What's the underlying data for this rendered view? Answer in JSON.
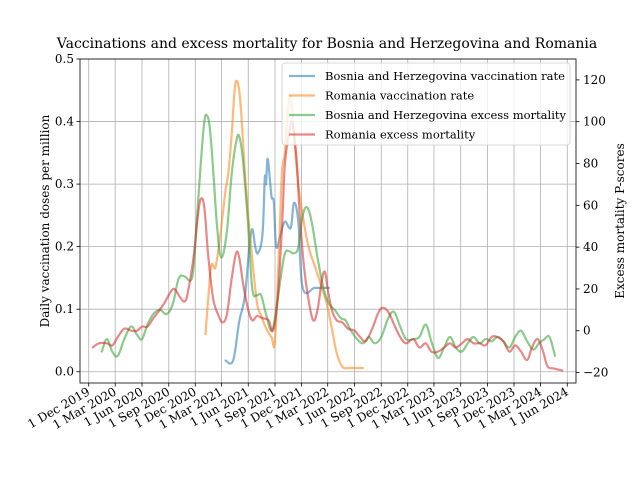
{
  "chart_data": {
    "type": "line",
    "title": "Vaccinations and excess mortality for Bosnia and Herzegovina and Romania",
    "ylabel_left": "Daily vaccination doses per million",
    "ylabel_right": "Excess mortality P-scores",
    "ylim_left": [
      -0.018,
      0.5
    ],
    "ylim_right": [
      -25,
      130
    ],
    "x_range": [
      "2019-11-01",
      "2024-07-01"
    ],
    "left_ticks": [
      {
        "value": 0.0,
        "label": "0.0"
      },
      {
        "value": 0.1,
        "label": "0.1"
      },
      {
        "value": 0.2,
        "label": "0.2"
      },
      {
        "value": 0.3,
        "label": "0.3"
      },
      {
        "value": 0.4,
        "label": "0.4"
      },
      {
        "value": 0.5,
        "label": "0.5"
      }
    ],
    "right_ticks": [
      {
        "value": -20,
        "label": "−20"
      },
      {
        "value": 0,
        "label": "0"
      },
      {
        "value": 20,
        "label": "20"
      },
      {
        "value": 40,
        "label": "40"
      },
      {
        "value": 60,
        "label": "60"
      },
      {
        "value": 80,
        "label": "80"
      },
      {
        "value": 100,
        "label": "100"
      },
      {
        "value": 120,
        "label": "120"
      }
    ],
    "x_ticks": [
      {
        "date": "2019-12-01",
        "label": "1 Dec 2019"
      },
      {
        "date": "2020-03-01",
        "label": "1 Mar 2020"
      },
      {
        "date": "2020-06-01",
        "label": "1 Jun 2020"
      },
      {
        "date": "2020-09-01",
        "label": "1 Sep 2020"
      },
      {
        "date": "2020-12-01",
        "label": "1 Dec 2020"
      },
      {
        "date": "2021-03-01",
        "label": "1 Mar 2021"
      },
      {
        "date": "2021-06-01",
        "label": "1 Jun 2021"
      },
      {
        "date": "2021-09-01",
        "label": "1 Sep 2021"
      },
      {
        "date": "2021-12-01",
        "label": "1 Dec 2021"
      },
      {
        "date": "2022-03-01",
        "label": "1 Mar 2022"
      },
      {
        "date": "2022-06-01",
        "label": "1 Jun 2022"
      },
      {
        "date": "2022-09-01",
        "label": "1 Sep 2022"
      },
      {
        "date": "2022-12-01",
        "label": "1 Dec 2022"
      },
      {
        "date": "2023-03-01",
        "label": "1 Mar 2023"
      },
      {
        "date": "2023-06-01",
        "label": "1 Jun 2023"
      },
      {
        "date": "2023-09-01",
        "label": "1 Sep 2023"
      },
      {
        "date": "2023-12-01",
        "label": "1 Dec 2023"
      },
      {
        "date": "2024-03-01",
        "label": "1 Mar 2024"
      },
      {
        "date": "2024-06-01",
        "label": "1 Jun 2024"
      }
    ],
    "grid": true,
    "legend_position": "top-right",
    "series": [
      {
        "name": "Bosnia and Herzegovina vaccination rate",
        "axis": "left",
        "color": "#1f77b4",
        "points": [
          [
            "2021-03-15",
            0.018
          ],
          [
            "2021-04-10",
            0.018
          ],
          [
            "2021-05-01",
            0.08
          ],
          [
            "2021-05-20",
            0.12
          ],
          [
            "2021-06-05",
            0.2
          ],
          [
            "2021-06-15",
            0.228
          ],
          [
            "2021-06-25",
            0.2
          ],
          [
            "2021-07-05",
            0.19
          ],
          [
            "2021-07-20",
            0.22
          ],
          [
            "2021-07-28",
            0.31
          ],
          [
            "2021-08-01",
            0.3
          ],
          [
            "2021-08-06",
            0.34
          ],
          [
            "2021-08-12",
            0.32
          ],
          [
            "2021-08-20",
            0.28
          ],
          [
            "2021-08-28",
            0.27
          ],
          [
            "2021-09-05",
            0.2
          ],
          [
            "2021-09-20",
            0.22
          ],
          [
            "2021-10-05",
            0.24
          ],
          [
            "2021-10-25",
            0.23
          ],
          [
            "2021-11-05",
            0.27
          ],
          [
            "2021-11-20",
            0.24
          ],
          [
            "2021-12-05",
            0.134
          ],
          [
            "2022-01-15",
            0.134
          ],
          [
            "2022-02-15",
            0.134
          ],
          [
            "2022-03-05",
            0.134
          ]
        ]
      },
      {
        "name": "Romania vaccination rate",
        "axis": "left",
        "color": "#ff7f0e",
        "points": [
          [
            "2021-01-05",
            0.06
          ],
          [
            "2021-01-15",
            0.12
          ],
          [
            "2021-01-25",
            0.17
          ],
          [
            "2021-02-05",
            0.165
          ],
          [
            "2021-02-10",
            0.17
          ],
          [
            "2021-02-20",
            0.2
          ],
          [
            "2021-03-05",
            0.25
          ],
          [
            "2021-03-15",
            0.29
          ],
          [
            "2021-03-25",
            0.32
          ],
          [
            "2021-04-05",
            0.38
          ],
          [
            "2021-04-15",
            0.45
          ],
          [
            "2021-04-22",
            0.465
          ],
          [
            "2021-05-01",
            0.45
          ],
          [
            "2021-05-10",
            0.4
          ],
          [
            "2021-05-20",
            0.32
          ],
          [
            "2021-06-01",
            0.25
          ],
          [
            "2021-06-15",
            0.18
          ],
          [
            "2021-07-01",
            0.11
          ],
          [
            "2021-07-15",
            0.09
          ],
          [
            "2021-08-01",
            0.07
          ],
          [
            "2021-08-20",
            0.055
          ],
          [
            "2021-09-01",
            0.05
          ],
          [
            "2021-09-15",
            0.2
          ],
          [
            "2021-09-25",
            0.32
          ],
          [
            "2021-10-05",
            0.35
          ],
          [
            "2021-10-15",
            0.42
          ],
          [
            "2021-10-25",
            0.44
          ],
          [
            "2021-11-05",
            0.38
          ],
          [
            "2021-11-20",
            0.3
          ],
          [
            "2021-12-05",
            0.25
          ],
          [
            "2021-12-25",
            0.2
          ],
          [
            "2022-01-15",
            0.17
          ],
          [
            "2022-02-05",
            0.14
          ],
          [
            "2022-02-25",
            0.11
          ],
          [
            "2022-03-15",
            0.07
          ],
          [
            "2022-04-01",
            0.03
          ],
          [
            "2022-04-20",
            0.008
          ],
          [
            "2022-05-15",
            0.006
          ],
          [
            "2022-06-30",
            0.006
          ]
        ]
      },
      {
        "name": "Bosnia and Herzegovina excess mortality",
        "axis": "right",
        "color": "#2ca02c",
        "points": [
          [
            "2020-01-15",
            -10
          ],
          [
            "2020-02-01",
            -4
          ],
          [
            "2020-02-20",
            -10
          ],
          [
            "2020-03-10",
            -12
          ],
          [
            "2020-04-01",
            -4
          ],
          [
            "2020-04-25",
            2
          ],
          [
            "2020-05-15",
            -2
          ],
          [
            "2020-06-01",
            -4
          ],
          [
            "2020-06-20",
            3
          ],
          [
            "2020-07-10",
            8
          ],
          [
            "2020-08-01",
            10
          ],
          [
            "2020-08-25",
            8
          ],
          [
            "2020-09-15",
            13
          ],
          [
            "2020-10-05",
            25
          ],
          [
            "2020-10-25",
            26
          ],
          [
            "2020-11-15",
            24
          ],
          [
            "2020-11-25",
            30
          ],
          [
            "2020-12-05",
            50
          ],
          [
            "2020-12-20",
            80
          ],
          [
            "2021-01-01",
            100
          ],
          [
            "2021-01-10",
            103
          ],
          [
            "2021-01-20",
            97
          ],
          [
            "2021-02-01",
            76
          ],
          [
            "2021-02-15",
            48
          ],
          [
            "2021-03-01",
            35
          ],
          [
            "2021-03-20",
            48
          ],
          [
            "2021-04-05",
            75
          ],
          [
            "2021-04-20",
            90
          ],
          [
            "2021-05-01",
            93
          ],
          [
            "2021-05-15",
            80
          ],
          [
            "2021-06-01",
            50
          ],
          [
            "2021-06-15",
            20
          ],
          [
            "2021-07-01",
            17
          ],
          [
            "2021-07-15",
            17
          ],
          [
            "2021-08-01",
            8
          ],
          [
            "2021-08-20",
            0
          ],
          [
            "2021-09-05",
            10
          ],
          [
            "2021-09-20",
            25
          ],
          [
            "2021-10-05",
            37
          ],
          [
            "2021-10-20",
            38
          ],
          [
            "2021-11-05",
            37
          ],
          [
            "2021-11-20",
            40
          ],
          [
            "2021-12-05",
            55
          ],
          [
            "2021-12-20",
            59
          ],
          [
            "2022-01-05",
            52
          ],
          [
            "2022-01-25",
            35
          ],
          [
            "2022-02-15",
            20
          ],
          [
            "2022-03-05",
            13
          ],
          [
            "2022-03-25",
            10
          ],
          [
            "2022-04-15",
            6
          ],
          [
            "2022-05-01",
            5
          ],
          [
            "2022-05-20",
            0
          ],
          [
            "2022-06-10",
            -4
          ],
          [
            "2022-07-01",
            -6
          ],
          [
            "2022-07-20",
            -3
          ],
          [
            "2022-08-10",
            -6
          ],
          [
            "2022-09-01",
            -3
          ],
          [
            "2022-09-25",
            6
          ],
          [
            "2022-10-15",
            9
          ],
          [
            "2022-11-05",
            2
          ],
          [
            "2022-11-25",
            -4
          ],
          [
            "2022-12-20",
            -4
          ],
          [
            "2023-01-10",
            -3
          ],
          [
            "2023-02-01",
            3
          ],
          [
            "2023-02-20",
            -5
          ],
          [
            "2023-03-15",
            -13
          ],
          [
            "2023-04-05",
            -8
          ],
          [
            "2023-04-25",
            -3
          ],
          [
            "2023-05-15",
            -8
          ],
          [
            "2023-06-05",
            -10
          ],
          [
            "2023-06-25",
            -6
          ],
          [
            "2023-07-15",
            -3
          ],
          [
            "2023-08-05",
            -6
          ],
          [
            "2023-08-25",
            -4
          ],
          [
            "2023-09-15",
            -5
          ],
          [
            "2023-10-05",
            -3
          ],
          [
            "2023-10-25",
            -5
          ],
          [
            "2023-11-15",
            -8
          ],
          [
            "2023-12-05",
            -3
          ],
          [
            "2023-12-25",
            0
          ],
          [
            "2024-01-15",
            -5
          ],
          [
            "2024-02-05",
            -9
          ],
          [
            "2024-02-25",
            -6
          ],
          [
            "2024-03-15",
            -4
          ],
          [
            "2024-04-01",
            -3
          ],
          [
            "2024-04-20",
            -12
          ]
        ]
      },
      {
        "name": "Romania excess mortality",
        "axis": "right",
        "color": "#d62728",
        "points": [
          [
            "2019-12-15",
            -8
          ],
          [
            "2020-01-05",
            -6
          ],
          [
            "2020-02-01",
            -6
          ],
          [
            "2020-02-20",
            -7
          ],
          [
            "2020-03-10",
            -3
          ],
          [
            "2020-04-01",
            1
          ],
          [
            "2020-04-25",
            0
          ],
          [
            "2020-05-15",
            0
          ],
          [
            "2020-06-01",
            2
          ],
          [
            "2020-06-20",
            2
          ],
          [
            "2020-07-10",
            6
          ],
          [
            "2020-08-01",
            10
          ],
          [
            "2020-08-20",
            14
          ],
          [
            "2020-09-05",
            18
          ],
          [
            "2020-09-20",
            20
          ],
          [
            "2020-10-10",
            16
          ],
          [
            "2020-10-25",
            14
          ],
          [
            "2020-11-05",
            18
          ],
          [
            "2020-11-25",
            35
          ],
          [
            "2020-12-10",
            55
          ],
          [
            "2020-12-20",
            63
          ],
          [
            "2021-01-01",
            59
          ],
          [
            "2021-01-15",
            35
          ],
          [
            "2021-02-01",
            15
          ],
          [
            "2021-02-20",
            7
          ],
          [
            "2021-03-05",
            4
          ],
          [
            "2021-03-20",
            8
          ],
          [
            "2021-04-05",
            25
          ],
          [
            "2021-04-20",
            37
          ],
          [
            "2021-05-01",
            35
          ],
          [
            "2021-05-15",
            22
          ],
          [
            "2021-06-01",
            10
          ],
          [
            "2021-06-15",
            5
          ],
          [
            "2021-07-01",
            7
          ],
          [
            "2021-07-20",
            6
          ],
          [
            "2021-08-10",
            5
          ],
          [
            "2021-08-25",
            0
          ],
          [
            "2021-09-10",
            15
          ],
          [
            "2021-09-25",
            50
          ],
          [
            "2021-10-05",
            80
          ],
          [
            "2021-10-20",
            95
          ],
          [
            "2021-10-28",
            100
          ],
          [
            "2021-11-05",
            95
          ],
          [
            "2021-11-15",
            80
          ],
          [
            "2021-11-25",
            55
          ],
          [
            "2021-12-10",
            30
          ],
          [
            "2021-12-25",
            15
          ],
          [
            "2022-01-10",
            5
          ],
          [
            "2022-01-25",
            10
          ],
          [
            "2022-02-10",
            25
          ],
          [
            "2022-02-20",
            28
          ],
          [
            "2022-03-01",
            20
          ],
          [
            "2022-03-15",
            10
          ],
          [
            "2022-04-01",
            5
          ],
          [
            "2022-04-20",
            4
          ],
          [
            "2022-05-10",
            1
          ],
          [
            "2022-06-01",
            0
          ],
          [
            "2022-06-20",
            -3
          ],
          [
            "2022-07-10",
            -5
          ],
          [
            "2022-08-01",
            1
          ],
          [
            "2022-08-20",
            8
          ],
          [
            "2022-09-05",
            11
          ],
          [
            "2022-09-25",
            9
          ],
          [
            "2022-10-15",
            3
          ],
          [
            "2022-11-05",
            -3
          ],
          [
            "2022-11-25",
            -6
          ],
          [
            "2022-12-20",
            -4
          ],
          [
            "2023-01-10",
            -8
          ],
          [
            "2023-02-01",
            -6
          ],
          [
            "2023-02-20",
            -10
          ],
          [
            "2023-03-15",
            -10
          ],
          [
            "2023-04-05",
            -8
          ],
          [
            "2023-04-25",
            -6
          ],
          [
            "2023-05-15",
            -8
          ],
          [
            "2023-06-05",
            -6
          ],
          [
            "2023-06-25",
            -4
          ],
          [
            "2023-07-15",
            -6
          ],
          [
            "2023-08-05",
            -6
          ],
          [
            "2023-08-25",
            -7
          ],
          [
            "2023-09-15",
            -3
          ],
          [
            "2023-10-05",
            -3
          ],
          [
            "2023-10-25",
            -5
          ],
          [
            "2023-11-15",
            -10
          ],
          [
            "2023-12-05",
            -7
          ],
          [
            "2023-12-25",
            -10
          ],
          [
            "2024-01-15",
            -14
          ],
          [
            "2024-02-01",
            -8
          ],
          [
            "2024-02-20",
            -4
          ],
          [
            "2024-03-10",
            -10
          ],
          [
            "2024-03-25",
            -17
          ],
          [
            "2024-04-15",
            -18
          ],
          [
            "2024-05-15",
            -19
          ]
        ]
      }
    ]
  }
}
